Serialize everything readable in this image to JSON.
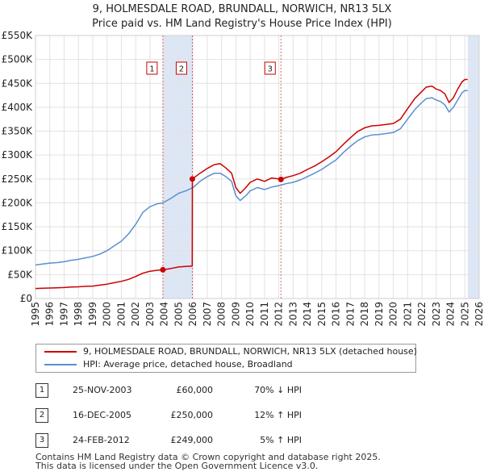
{
  "header": {
    "title_line1": "9, HOLMESDALE ROAD, BRUNDALL, NORWICH, NR13 5LX",
    "title_line2": "Price paid vs. HM Land Registry's House Price Index (HPI)"
  },
  "legend": {
    "property_label": "9, HOLMESDALE ROAD, BRUNDALL, NORWICH, NR13 5LX (detached house)",
    "hpi_label": "HPI: Average price, detached house, Broadland"
  },
  "colors": {
    "property": "#cc0000",
    "hpi": "#5b8fd0",
    "shade": "#dde6f5",
    "grid": "#e2e2e2"
  },
  "transactions": [
    {
      "num": "1",
      "date": "25-NOV-2003",
      "price": "£60,000",
      "hpi": "70% ↓ HPI"
    },
    {
      "num": "2",
      "date": "16-DEC-2005",
      "price": "£250,000",
      "hpi": "12% ↑ HPI"
    },
    {
      "num": "3",
      "date": "24-FEB-2012",
      "price": "£249,000",
      "hpi": "5% ↑ HPI"
    }
  ],
  "footer": {
    "line1": "Contains HM Land Registry data © Crown copyright and database right 2025.",
    "line2": "This data is licensed under the Open Government Licence v3.0."
  },
  "chart_data": {
    "type": "line",
    "xlim": [
      1995,
      2026
    ],
    "ylim": [
      0,
      550000
    ],
    "xticks": [
      1995,
      1996,
      1997,
      1998,
      1999,
      2000,
      2001,
      2002,
      2003,
      2004,
      2005,
      2006,
      2007,
      2008,
      2009,
      2010,
      2011,
      2012,
      2013,
      2014,
      2015,
      2016,
      2017,
      2018,
      2019,
      2020,
      2021,
      2022,
      2023,
      2024,
      2025,
      2026
    ],
    "yticks": [
      {
        "value": 0,
        "label": "£0"
      },
      {
        "value": 50000,
        "label": "£50K"
      },
      {
        "value": 100000,
        "label": "£100K"
      },
      {
        "value": 150000,
        "label": "£150K"
      },
      {
        "value": 200000,
        "label": "£200K"
      },
      {
        "value": 250000,
        "label": "£250K"
      },
      {
        "value": 300000,
        "label": "£300K"
      },
      {
        "value": 350000,
        "label": "£350K"
      },
      {
        "value": 400000,
        "label": "£400K"
      },
      {
        "value": 450000,
        "label": "£450K"
      },
      {
        "value": 500000,
        "label": "£500K"
      },
      {
        "value": 550000,
        "label": "£550K"
      }
    ],
    "shaded_regions": [
      [
        2003.9,
        2005.96
      ],
      [
        2025.2,
        2026
      ]
    ],
    "markers": [
      {
        "label": "1",
        "x": 2003.9,
        "y": 60000
      },
      {
        "label": "2",
        "x": 2005.96,
        "y": 250000
      },
      {
        "label": "3",
        "x": 2012.15,
        "y": 249000
      }
    ],
    "series": [
      {
        "name": "HPI: Average price, detached house, Broadland",
        "x": [
          1995,
          1995.5,
          1996,
          1996.5,
          1997,
          1997.5,
          1998,
          1998.5,
          1999,
          1999.5,
          2000,
          2000.5,
          2001,
          2001.5,
          2002,
          2002.5,
          2003,
          2003.5,
          2003.9,
          2004.5,
          2005,
          2005.5,
          2006,
          2006.5,
          2007,
          2007.5,
          2007.9,
          2008.3,
          2008.7,
          2009.0,
          2009.3,
          2009.7,
          2010,
          2010.5,
          2011,
          2011.5,
          2012,
          2012.15,
          2012.5,
          2013,
          2013.5,
          2014,
          2014.5,
          2015,
          2015.5,
          2016,
          2016.5,
          2017,
          2017.5,
          2018,
          2018.5,
          2019,
          2019.5,
          2020,
          2020.5,
          2021,
          2021.5,
          2022,
          2022.3,
          2022.7,
          2023,
          2023.3,
          2023.6,
          2023.9,
          2024.2,
          2024.5,
          2024.8,
          2025,
          2025.2
        ],
        "values": [
          70000,
          72000,
          74000,
          75000,
          77000,
          80000,
          82000,
          85000,
          88000,
          93000,
          100000,
          110000,
          120000,
          135000,
          155000,
          180000,
          192000,
          198000,
          200000,
          210000,
          220000,
          225000,
          232000,
          245000,
          255000,
          262000,
          262000,
          255000,
          245000,
          215000,
          205000,
          215000,
          225000,
          232000,
          228000,
          233000,
          236000,
          237000,
          240000,
          243000,
          248000,
          255000,
          262000,
          270000,
          280000,
          290000,
          305000,
          318000,
          330000,
          338000,
          342000,
          343000,
          345000,
          347000,
          355000,
          375000,
          395000,
          410000,
          418000,
          420000,
          415000,
          412000,
          405000,
          390000,
          400000,
          415000,
          430000,
          435000,
          435000
        ]
      },
      {
        "name": "9, HOLMESDALE ROAD, BRUNDALL, NORWICH, NR13 5LX (detached house)",
        "x": [
          1995,
          1995.5,
          1996,
          1996.5,
          1997,
          1997.5,
          1998,
          1998.5,
          1999,
          1999.5,
          2000,
          2000.5,
          2001,
          2001.5,
          2002,
          2002.5,
          2003,
          2003.5,
          2003.9,
          2004.5,
          2005,
          2005.5,
          2005.95,
          2005.96,
          2006.5,
          2007,
          2007.5,
          2007.9,
          2008.3,
          2008.7,
          2009.0,
          2009.3,
          2009.7,
          2010,
          2010.5,
          2011,
          2011.5,
          2012.0,
          2012.15,
          2012.5,
          2013,
          2013.5,
          2014,
          2014.5,
          2015,
          2015.5,
          2016,
          2016.5,
          2017,
          2017.5,
          2018,
          2018.5,
          2019,
          2019.5,
          2020,
          2020.5,
          2021,
          2021.5,
          2022,
          2022.3,
          2022.7,
          2023,
          2023.3,
          2023.6,
          2023.9,
          2024.2,
          2024.5,
          2024.8,
          2025,
          2025.2
        ],
        "values": [
          21000,
          21500,
          22000,
          22400,
          23000,
          24000,
          24500,
          25500,
          26000,
          28000,
          30000,
          33000,
          36000,
          40000,
          46000,
          53000,
          57000,
          59000,
          60000,
          63000,
          66000,
          67000,
          68000,
          250000,
          262000,
          272000,
          280000,
          282000,
          273000,
          262000,
          232000,
          220000,
          232000,
          243000,
          250000,
          245000,
          252000,
          250000,
          249000,
          253000,
          257000,
          262000,
          270000,
          277000,
          286000,
          296000,
          307000,
          322000,
          336000,
          349000,
          357000,
          361000,
          362000,
          364000,
          366000,
          375000,
          397000,
          418000,
          433000,
          442000,
          444000,
          438000,
          435000,
          428000,
          410000,
          420000,
          438000,
          453000,
          458000,
          458000
        ]
      }
    ]
  }
}
